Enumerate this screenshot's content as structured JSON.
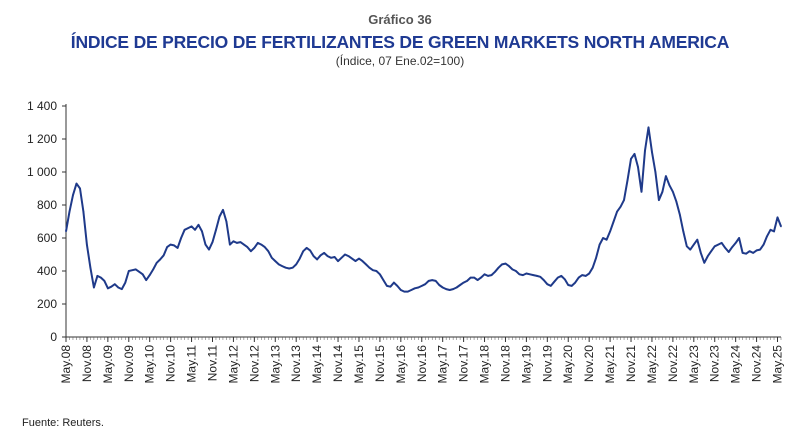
{
  "header": {
    "label": "Gráfico 36",
    "title": "ÍNDICE DE PRECIO DE FERTILIZANTES DE GREEN MARKETS NORTH AMERICA",
    "subtitle": "(Índice, 07 Ene.02=100)"
  },
  "source": "Fuente: Reuters.",
  "chart_data": {
    "type": "line",
    "line_color": "#1f3a8a",
    "grid": false,
    "ylim": [
      0,
      1400
    ],
    "yticks": [
      0,
      200,
      400,
      600,
      800,
      1000,
      1200,
      1400
    ],
    "ytick_labels": [
      "0",
      "200",
      "400",
      "600",
      "800",
      "1 000",
      "1 200",
      "1 400"
    ],
    "xtick_labels": [
      "May.08",
      "Nov.08",
      "May.09",
      "Nov.09",
      "May.10",
      "Nov.10",
      "May.11",
      "Nov.11",
      "May.12",
      "Nov.12",
      "May.13",
      "Nov.13",
      "May.14",
      "Nov.14",
      "May.15",
      "Nov.15",
      "May.16",
      "Nov.16",
      "May.17",
      "Nov.17",
      "May.18",
      "Nov.18",
      "May.19",
      "Nov.19",
      "May.20",
      "Nov.20",
      "May.21",
      "Nov.21",
      "May.22",
      "Nov.22",
      "May.23",
      "Nov.23",
      "May.24",
      "Nov.24",
      "May.25"
    ],
    "series": [
      {
        "points": [
          [
            "2008-05",
            640
          ],
          [
            "2008-06",
            760
          ],
          [
            "2008-07",
            860
          ],
          [
            "2008-08",
            930
          ],
          [
            "2008-09",
            900
          ],
          [
            "2008-10",
            760
          ],
          [
            "2008-11",
            560
          ],
          [
            "2008-12",
            420
          ],
          [
            "2009-01",
            300
          ],
          [
            "2009-02",
            370
          ],
          [
            "2009-03",
            360
          ],
          [
            "2009-04",
            340
          ],
          [
            "2009-05",
            295
          ],
          [
            "2009-06",
            305
          ],
          [
            "2009-07",
            320
          ],
          [
            "2009-08",
            300
          ],
          [
            "2009-09",
            290
          ],
          [
            "2009-10",
            330
          ],
          [
            "2009-11",
            400
          ],
          [
            "2009-12",
            405
          ],
          [
            "2010-01",
            410
          ],
          [
            "2010-02",
            395
          ],
          [
            "2010-03",
            380
          ],
          [
            "2010-04",
            345
          ],
          [
            "2010-05",
            375
          ],
          [
            "2010-06",
            410
          ],
          [
            "2010-07",
            450
          ],
          [
            "2010-08",
            470
          ],
          [
            "2010-09",
            495
          ],
          [
            "2010-10",
            545
          ],
          [
            "2010-11",
            560
          ],
          [
            "2010-12",
            555
          ],
          [
            "2011-01",
            540
          ],
          [
            "2011-02",
            600
          ],
          [
            "2011-03",
            650
          ],
          [
            "2011-04",
            660
          ],
          [
            "2011-05",
            670
          ],
          [
            "2011-06",
            650
          ],
          [
            "2011-07",
            680
          ],
          [
            "2011-08",
            640
          ],
          [
            "2011-09",
            560
          ],
          [
            "2011-10",
            530
          ],
          [
            "2011-11",
            575
          ],
          [
            "2011-12",
            650
          ],
          [
            "2012-01",
            730
          ],
          [
            "2012-02",
            770
          ],
          [
            "2012-03",
            700
          ],
          [
            "2012-04",
            560
          ],
          [
            "2012-05",
            580
          ],
          [
            "2012-06",
            570
          ],
          [
            "2012-07",
            575
          ],
          [
            "2012-08",
            560
          ],
          [
            "2012-09",
            545
          ],
          [
            "2012-10",
            520
          ],
          [
            "2012-11",
            540
          ],
          [
            "2012-12",
            570
          ],
          [
            "2013-01",
            560
          ],
          [
            "2013-02",
            545
          ],
          [
            "2013-03",
            520
          ],
          [
            "2013-04",
            480
          ],
          [
            "2013-05",
            460
          ],
          [
            "2013-06",
            440
          ],
          [
            "2013-07",
            430
          ],
          [
            "2013-08",
            420
          ],
          [
            "2013-09",
            415
          ],
          [
            "2013-10",
            420
          ],
          [
            "2013-11",
            440
          ],
          [
            "2013-12",
            475
          ],
          [
            "2014-01",
            520
          ],
          [
            "2014-02",
            540
          ],
          [
            "2014-03",
            525
          ],
          [
            "2014-04",
            490
          ],
          [
            "2014-05",
            470
          ],
          [
            "2014-06",
            495
          ],
          [
            "2014-07",
            510
          ],
          [
            "2014-08",
            490
          ],
          [
            "2014-09",
            480
          ],
          [
            "2014-10",
            485
          ],
          [
            "2014-11",
            460
          ],
          [
            "2014-12",
            480
          ],
          [
            "2015-01",
            500
          ],
          [
            "2015-02",
            490
          ],
          [
            "2015-03",
            475
          ],
          [
            "2015-04",
            460
          ],
          [
            "2015-05",
            475
          ],
          [
            "2015-06",
            460
          ],
          [
            "2015-07",
            440
          ],
          [
            "2015-08",
            420
          ],
          [
            "2015-09",
            405
          ],
          [
            "2015-10",
            400
          ],
          [
            "2015-11",
            380
          ],
          [
            "2015-12",
            345
          ],
          [
            "2016-01",
            310
          ],
          [
            "2016-02",
            305
          ],
          [
            "2016-03",
            330
          ],
          [
            "2016-04",
            310
          ],
          [
            "2016-05",
            285
          ],
          [
            "2016-06",
            275
          ],
          [
            "2016-07",
            275
          ],
          [
            "2016-08",
            285
          ],
          [
            "2016-09",
            295
          ],
          [
            "2016-10",
            300
          ],
          [
            "2016-11",
            310
          ],
          [
            "2016-12",
            320
          ],
          [
            "2017-01",
            340
          ],
          [
            "2017-02",
            345
          ],
          [
            "2017-03",
            340
          ],
          [
            "2017-04",
            315
          ],
          [
            "2017-05",
            300
          ],
          [
            "2017-06",
            290
          ],
          [
            "2017-07",
            285
          ],
          [
            "2017-08",
            290
          ],
          [
            "2017-09",
            300
          ],
          [
            "2017-10",
            315
          ],
          [
            "2017-11",
            330
          ],
          [
            "2017-12",
            340
          ],
          [
            "2018-01",
            360
          ],
          [
            "2018-02",
            360
          ],
          [
            "2018-03",
            345
          ],
          [
            "2018-04",
            360
          ],
          [
            "2018-05",
            380
          ],
          [
            "2018-06",
            370
          ],
          [
            "2018-07",
            375
          ],
          [
            "2018-08",
            395
          ],
          [
            "2018-09",
            420
          ],
          [
            "2018-10",
            440
          ],
          [
            "2018-11",
            445
          ],
          [
            "2018-12",
            430
          ],
          [
            "2019-01",
            410
          ],
          [
            "2019-02",
            400
          ],
          [
            "2019-03",
            380
          ],
          [
            "2019-04",
            375
          ],
          [
            "2019-05",
            385
          ],
          [
            "2019-06",
            380
          ],
          [
            "2019-07",
            375
          ],
          [
            "2019-08",
            370
          ],
          [
            "2019-09",
            365
          ],
          [
            "2019-10",
            345
          ],
          [
            "2019-11",
            320
          ],
          [
            "2019-12",
            310
          ],
          [
            "2020-01",
            335
          ],
          [
            "2020-02",
            360
          ],
          [
            "2020-03",
            370
          ],
          [
            "2020-04",
            350
          ],
          [
            "2020-05",
            315
          ],
          [
            "2020-06",
            310
          ],
          [
            "2020-07",
            330
          ],
          [
            "2020-08",
            360
          ],
          [
            "2020-09",
            375
          ],
          [
            "2020-10",
            370
          ],
          [
            "2020-11",
            385
          ],
          [
            "2020-12",
            420
          ],
          [
            "2021-01",
            480
          ],
          [
            "2021-02",
            560
          ],
          [
            "2021-03",
            600
          ],
          [
            "2021-04",
            590
          ],
          [
            "2021-05",
            640
          ],
          [
            "2021-06",
            700
          ],
          [
            "2021-07",
            760
          ],
          [
            "2021-08",
            790
          ],
          [
            "2021-09",
            830
          ],
          [
            "2021-10",
            950
          ],
          [
            "2021-11",
            1080
          ],
          [
            "2021-12",
            1110
          ],
          [
            "2022-01",
            1030
          ],
          [
            "2022-02",
            880
          ],
          [
            "2022-03",
            1130
          ],
          [
            "2022-04",
            1270
          ],
          [
            "2022-05",
            1120
          ],
          [
            "2022-06",
            1000
          ],
          [
            "2022-07",
            830
          ],
          [
            "2022-08",
            880
          ],
          [
            "2022-09",
            975
          ],
          [
            "2022-10",
            920
          ],
          [
            "2022-11",
            880
          ],
          [
            "2022-12",
            820
          ],
          [
            "2023-01",
            740
          ],
          [
            "2023-02",
            640
          ],
          [
            "2023-03",
            550
          ],
          [
            "2023-04",
            530
          ],
          [
            "2023-05",
            560
          ],
          [
            "2023-06",
            590
          ],
          [
            "2023-07",
            510
          ],
          [
            "2023-08",
            450
          ],
          [
            "2023-09",
            490
          ],
          [
            "2023-10",
            520
          ],
          [
            "2023-11",
            550
          ],
          [
            "2023-12",
            560
          ],
          [
            "2024-01",
            570
          ],
          [
            "2024-02",
            540
          ],
          [
            "2024-03",
            515
          ],
          [
            "2024-04",
            545
          ],
          [
            "2024-05",
            570
          ],
          [
            "2024-06",
            600
          ],
          [
            "2024-07",
            510
          ],
          [
            "2024-08",
            505
          ],
          [
            "2024-09",
            520
          ],
          [
            "2024-10",
            510
          ],
          [
            "2024-11",
            525
          ],
          [
            "2024-12",
            530
          ],
          [
            "2025-01",
            560
          ],
          [
            "2025-02",
            610
          ],
          [
            "2025-03",
            650
          ],
          [
            "2025-04",
            640
          ],
          [
            "2025-05",
            725
          ],
          [
            "2025-06",
            670
          ]
        ]
      }
    ]
  }
}
